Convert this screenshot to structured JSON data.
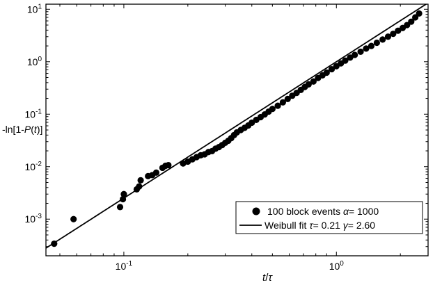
{
  "chart_data": {
    "type": "scatter",
    "x_scale": "log",
    "y_scale": "log",
    "xlim": [
      0.043,
      2.7
    ],
    "ylim": [
      0.0002,
      12.5
    ],
    "xlabel": {
      "italic": "t",
      "slash": "/",
      "greek": "τ"
    },
    "ylabel": {
      "prefix": "-ln[1-",
      "italic": "P",
      "open": "(",
      "italic2": "t",
      "close": ")]"
    },
    "x_major_ticks": [
      {
        "value": 0.1,
        "base": "10",
        "exp": "-1"
      },
      {
        "value": 1,
        "base": "10",
        "exp": "0"
      }
    ],
    "y_major_ticks": [
      {
        "value": 0.001,
        "base": "10",
        "exp": "-3"
      },
      {
        "value": 0.01,
        "base": "10",
        "exp": "-2"
      },
      {
        "value": 0.1,
        "base": "10",
        "exp": "-1"
      },
      {
        "value": 1,
        "base": "10",
        "exp": "0"
      },
      {
        "value": 10,
        "base": "10",
        "exp": "1"
      }
    ],
    "grid": false,
    "legend_position": "bottom-right",
    "series": [
      {
        "name": "100 block events",
        "legend_label": {
          "text": "100 block events ",
          "greek": "α",
          "rest": "= 1000"
        },
        "marker": "circle",
        "color": "#000000",
        "points": [
          [
            0.047,
            0.00034
          ],
          [
            0.058,
            0.001
          ],
          [
            0.096,
            0.0017
          ],
          [
            0.099,
            0.0024
          ],
          [
            0.1,
            0.003
          ],
          [
            0.115,
            0.0037
          ],
          [
            0.118,
            0.0042
          ],
          [
            0.12,
            0.0055
          ],
          [
            0.13,
            0.0066
          ],
          [
            0.136,
            0.0069
          ],
          [
            0.142,
            0.0077
          ],
          [
            0.152,
            0.0095
          ],
          [
            0.157,
            0.0104
          ],
          [
            0.162,
            0.0107
          ],
          [
            0.19,
            0.0115
          ],
          [
            0.2,
            0.0125
          ],
          [
            0.21,
            0.0138
          ],
          [
            0.22,
            0.0152
          ],
          [
            0.23,
            0.0165
          ],
          [
            0.24,
            0.0172
          ],
          [
            0.25,
            0.019
          ],
          [
            0.26,
            0.0198
          ],
          [
            0.27,
            0.022
          ],
          [
            0.28,
            0.0236
          ],
          [
            0.29,
            0.0258
          ],
          [
            0.3,
            0.0285
          ],
          [
            0.31,
            0.0312
          ],
          [
            0.32,
            0.035
          ],
          [
            0.33,
            0.04
          ],
          [
            0.34,
            0.045
          ],
          [
            0.355,
            0.05
          ],
          [
            0.37,
            0.055
          ],
          [
            0.385,
            0.061
          ],
          [
            0.4,
            0.069
          ],
          [
            0.42,
            0.078
          ],
          [
            0.44,
            0.088
          ],
          [
            0.46,
            0.099
          ],
          [
            0.48,
            0.112
          ],
          [
            0.5,
            0.126
          ],
          [
            0.53,
            0.145
          ],
          [
            0.56,
            0.168
          ],
          [
            0.59,
            0.195
          ],
          [
            0.62,
            0.225
          ],
          [
            0.65,
            0.255
          ],
          [
            0.68,
            0.29
          ],
          [
            0.71,
            0.33
          ],
          [
            0.74,
            0.37
          ],
          [
            0.78,
            0.42
          ],
          [
            0.82,
            0.49
          ],
          [
            0.86,
            0.55
          ],
          [
            0.9,
            0.62
          ],
          [
            0.95,
            0.72
          ],
          [
            1.0,
            0.82
          ],
          [
            1.05,
            0.93
          ],
          [
            1.1,
            1.05
          ],
          [
            1.16,
            1.2
          ],
          [
            1.22,
            1.35
          ],
          [
            1.3,
            1.55
          ],
          [
            1.38,
            1.78
          ],
          [
            1.46,
            2.0
          ],
          [
            1.55,
            2.3
          ],
          [
            1.65,
            2.65
          ],
          [
            1.75,
            3.0
          ],
          [
            1.85,
            3.4
          ],
          [
            1.95,
            3.9
          ],
          [
            2.05,
            4.4
          ],
          [
            2.15,
            5.0
          ],
          [
            2.25,
            5.8
          ],
          [
            2.35,
            7.0
          ],
          [
            2.45,
            8.3
          ]
        ]
      },
      {
        "name": "Weibull fit",
        "legend_label": {
          "text": "Weibull fit ",
          "greek1": "τ",
          "val1": "= 0.21 ",
          "greek2": "γ",
          "val2": "= 2.60"
        },
        "type": "line",
        "color": "#000000",
        "tau": 0.21,
        "gamma": 2.6
      }
    ]
  }
}
